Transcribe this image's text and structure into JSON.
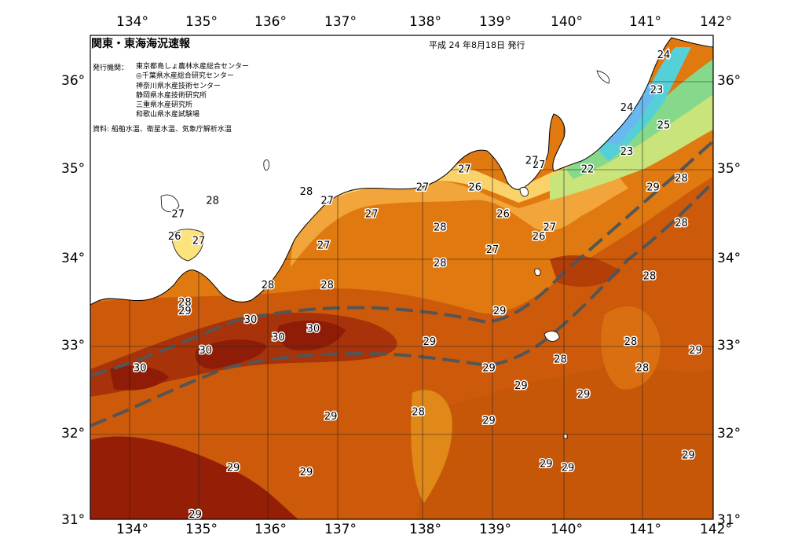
{
  "header": {
    "title": "関東・東海海況速報",
    "date": "平成 24 年8月18日 発行",
    "institutions_label": "発行機関：",
    "institutions": [
      "東京都島しょ農林水産総合センター",
      "◎千葉県水産総合研究センター",
      "神奈川県水産技術センター",
      "静岡県水産技術研究所",
      "三重県水産研究所",
      "和歌山県水産試験場"
    ],
    "source": "資料: 船舶水温、衛星水温、気象庁解析水温"
  },
  "axes": {
    "lon_labels": [
      "134°",
      "135°",
      "136°",
      "137°",
      "138°",
      "139°",
      "140°",
      "141°",
      "142°"
    ],
    "lat_labels": [
      "36°",
      "35°",
      "34°",
      "33°",
      "32°",
      "31°"
    ]
  },
  "isotherm_labels": [
    {
      "text": "24",
      "lon": 141.3,
      "lat": 36.3
    },
    {
      "text": "23",
      "lon": 141.2,
      "lat": 35.9
    },
    {
      "text": "24",
      "lon": 140.8,
      "lat": 35.7
    },
    {
      "text": "25",
      "lon": 141.3,
      "lat": 35.5
    },
    {
      "text": "23",
      "lon": 140.8,
      "lat": 35.2
    },
    {
      "text": "22",
      "lon": 140.3,
      "lat": 35.0
    },
    {
      "text": "27",
      "lon": 139.65,
      "lat": 35.05
    },
    {
      "text": "27",
      "lon": 139.55,
      "lat": 35.1
    },
    {
      "text": "27",
      "lon": 138.6,
      "lat": 35.0
    },
    {
      "text": "26",
      "lon": 138.75,
      "lat": 34.8
    },
    {
      "text": "27",
      "lon": 138.0,
      "lat": 34.8
    },
    {
      "text": "26",
      "lon": 139.15,
      "lat": 34.5
    },
    {
      "text": "27",
      "lon": 139.8,
      "lat": 34.35
    },
    {
      "text": "26",
      "lon": 139.65,
      "lat": 34.25
    },
    {
      "text": "27",
      "lon": 139.0,
      "lat": 34.1
    },
    {
      "text": "28",
      "lon": 138.25,
      "lat": 34.35
    },
    {
      "text": "28",
      "lon": 138.25,
      "lat": 33.95
    },
    {
      "text": "28",
      "lon": 136.55,
      "lat": 34.75
    },
    {
      "text": "27",
      "lon": 136.85,
      "lat": 34.65
    },
    {
      "text": "27",
      "lon": 137.4,
      "lat": 34.5
    },
    {
      "text": "27",
      "lon": 136.8,
      "lat": 34.15
    },
    {
      "text": "28",
      "lon": 135.2,
      "lat": 34.65
    },
    {
      "text": "27",
      "lon": 134.7,
      "lat": 34.5
    },
    {
      "text": "26",
      "lon": 134.65,
      "lat": 34.25
    },
    {
      "text": "27",
      "lon": 135.0,
      "lat": 34.2
    },
    {
      "text": "28",
      "lon": 134.8,
      "lat": 33.5
    },
    {
      "text": "29",
      "lon": 134.8,
      "lat": 33.4
    },
    {
      "text": "28",
      "lon": 136.0,
      "lat": 33.7
    },
    {
      "text": "28",
      "lon": 136.85,
      "lat": 33.7
    },
    {
      "text": "30",
      "lon": 135.75,
      "lat": 33.3
    },
    {
      "text": "30",
      "lon": 136.15,
      "lat": 33.1
    },
    {
      "text": "30",
      "lon": 136.65,
      "lat": 33.2
    },
    {
      "text": "30",
      "lon": 135.1,
      "lat": 32.95
    },
    {
      "text": "30",
      "lon": 134.15,
      "lat": 32.75
    },
    {
      "text": "29",
      "lon": 139.1,
      "lat": 33.4
    },
    {
      "text": "29",
      "lon": 138.1,
      "lat": 33.05
    },
    {
      "text": "29",
      "lon": 138.95,
      "lat": 32.75
    },
    {
      "text": "29",
      "lon": 139.4,
      "lat": 32.55
    },
    {
      "text": "28",
      "lon": 139.95,
      "lat": 32.85
    },
    {
      "text": "29",
      "lon": 140.25,
      "lat": 32.45
    },
    {
      "text": "28",
      "lon": 140.85,
      "lat": 33.05
    },
    {
      "text": "28",
      "lon": 141.0,
      "lat": 32.75
    },
    {
      "text": "29",
      "lon": 141.75,
      "lat": 32.95
    },
    {
      "text": "28",
      "lon": 141.1,
      "lat": 33.8
    },
    {
      "text": "28",
      "lon": 141.55,
      "lat": 34.4
    },
    {
      "text": "29",
      "lon": 141.15,
      "lat": 34.8
    },
    {
      "text": "28",
      "lon": 141.55,
      "lat": 34.9
    },
    {
      "text": "28",
      "lon": 137.95,
      "lat": 32.25
    },
    {
      "text": "29",
      "lon": 136.9,
      "lat": 32.2
    },
    {
      "text": "29",
      "lon": 138.95,
      "lat": 32.15
    },
    {
      "text": "29",
      "lon": 139.75,
      "lat": 31.65
    },
    {
      "text": "29",
      "lon": 140.05,
      "lat": 31.6
    },
    {
      "text": "29",
      "lon": 141.65,
      "lat": 31.75
    },
    {
      "text": "29",
      "lon": 135.5,
      "lat": 31.6
    },
    {
      "text": "29",
      "lon": 136.55,
      "lat": 31.55
    },
    {
      "text": "29",
      "lon": 134.95,
      "lat": 31.05
    }
  ]
}
